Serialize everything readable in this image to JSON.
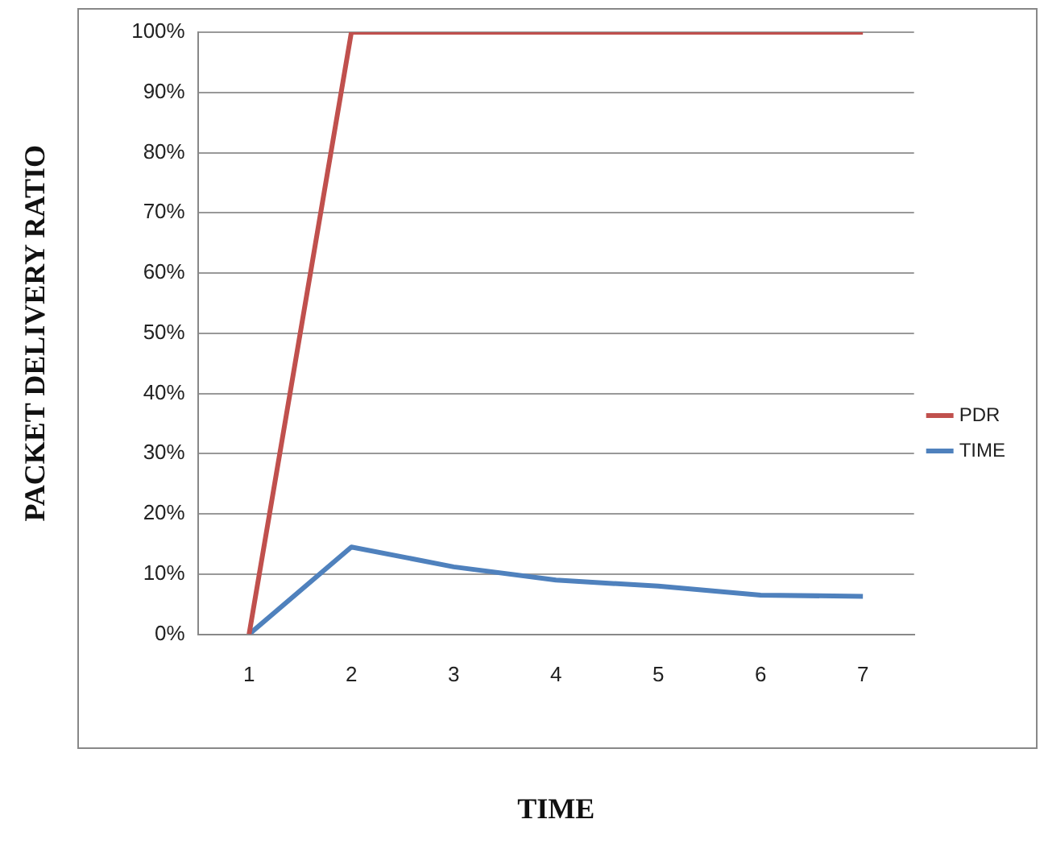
{
  "chart_data": {
    "type": "line",
    "xlabel": "TIME",
    "ylabel": "PACKET DELIVERY RATIO",
    "categories": [
      "1",
      "2",
      "3",
      "4",
      "5",
      "6",
      "7"
    ],
    "series": [
      {
        "name": "PDR",
        "color": "#c0504d",
        "values": [
          0,
          100,
          100,
          100,
          100,
          100,
          100
        ]
      },
      {
        "name": "TIME",
        "color": "#4f81bd",
        "values": [
          0,
          14.5,
          11.2,
          9,
          8,
          6.5,
          6.3
        ]
      }
    ],
    "ylim": [
      0,
      100
    ],
    "yticks": [
      {
        "value": 0,
        "label": "0%"
      },
      {
        "value": 10,
        "label": "10%"
      },
      {
        "value": 20,
        "label": "20%"
      },
      {
        "value": 30,
        "label": "30%"
      },
      {
        "value": 40,
        "label": "40%"
      },
      {
        "value": 50,
        "label": "50%"
      },
      {
        "value": 60,
        "label": "60%"
      },
      {
        "value": 70,
        "label": "70%"
      },
      {
        "value": 80,
        "label": "80%"
      },
      {
        "value": 90,
        "label": "90%"
      },
      {
        "value": 100,
        "label": "100%"
      }
    ],
    "grid": "y",
    "legend": "right",
    "marker": "none",
    "line_style": "solid"
  }
}
